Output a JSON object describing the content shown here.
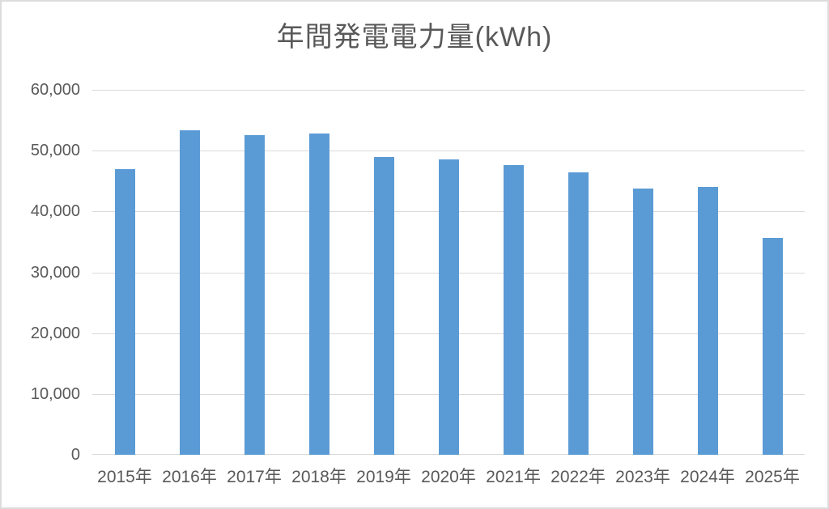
{
  "chart_data": {
    "type": "bar",
    "title": "年間発電電力量(kWh)",
    "categories": [
      "2015年",
      "2016年",
      "2017年",
      "2018年",
      "2019年",
      "2020年",
      "2021年",
      "2022年",
      "2023年",
      "2024年",
      "2025年"
    ],
    "values": [
      47000,
      53300,
      52500,
      52800,
      48900,
      48500,
      47600,
      46400,
      43800,
      44100,
      35700
    ],
    "xlabel": "",
    "ylabel": "",
    "ylim": [
      0,
      60000
    ],
    "ytick_step": 10000,
    "ytick_labels": [
      "0",
      "10,000",
      "20,000",
      "30,000",
      "40,000",
      "50,000",
      "60,000"
    ],
    "grid": true,
    "legend": "none",
    "colors": {
      "bar": "#5b9bd5",
      "gridline": "#d9d9d9",
      "axis_line": "#d9d9d9",
      "text": "#595959",
      "background": "#ffffff",
      "frame_border": "#dcdcdc"
    }
  }
}
